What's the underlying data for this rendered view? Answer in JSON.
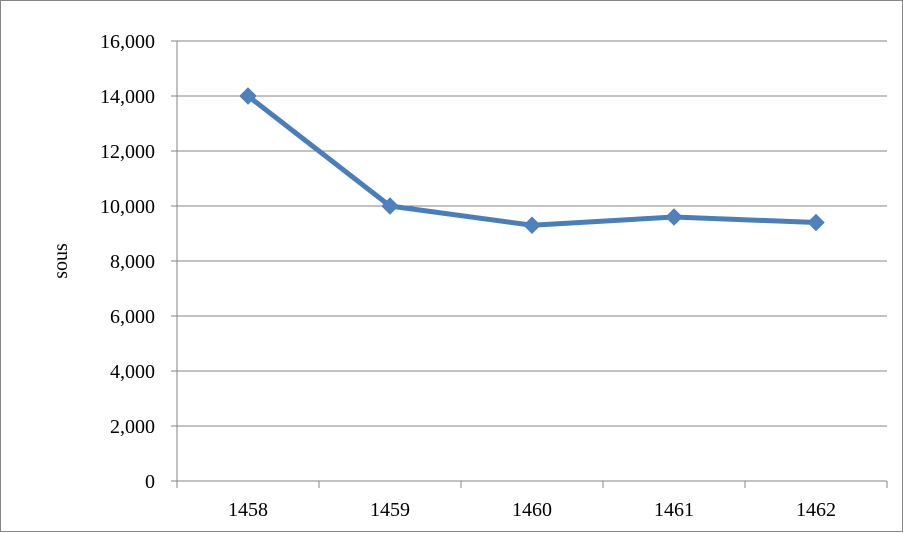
{
  "chart_data": {
    "type": "line",
    "categories": [
      "1458",
      "1459",
      "1460",
      "1461",
      "1462"
    ],
    "series": [
      {
        "values": [
          14000,
          10000,
          9300,
          9600,
          9400
        ]
      }
    ],
    "title": "",
    "xlabel": "",
    "ylabel": "sous",
    "ylim": [
      0,
      16000
    ],
    "yticks": [
      0,
      2000,
      4000,
      6000,
      8000,
      10000,
      12000,
      14000,
      16000
    ],
    "ytick_labels": [
      "0",
      "2,000",
      "4,000",
      "6,000",
      "8,000",
      "10,000",
      "12,000",
      "14,000",
      "16,000"
    ],
    "grid": "horizontal",
    "legend": "none",
    "colors": {
      "line": "#4a7ebb",
      "marker": "#4f81bd",
      "grid": "#868686",
      "axis": "#868686",
      "frame": "#868686"
    },
    "marker": "diamond"
  }
}
